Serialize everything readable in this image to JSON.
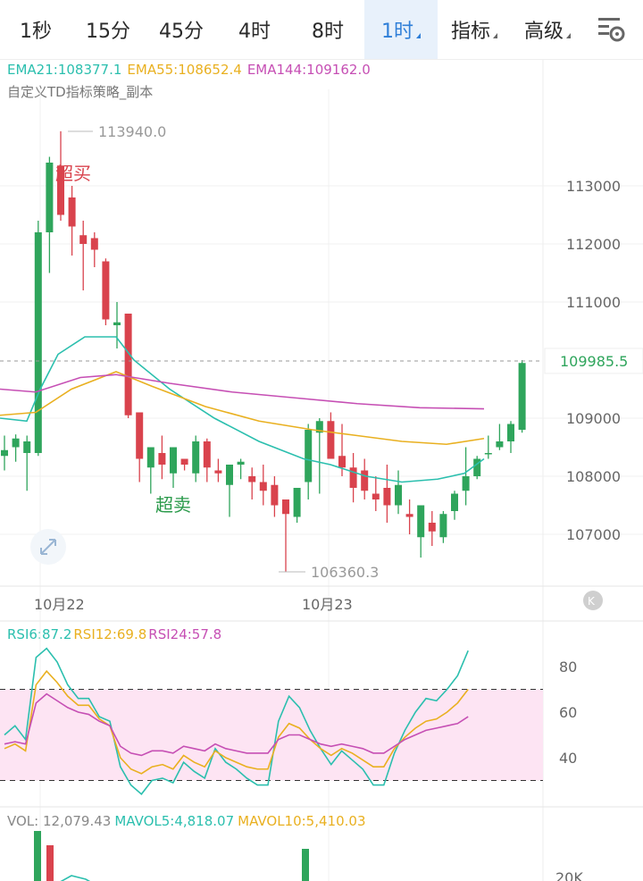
{
  "tabs": [
    {
      "label": "1秒",
      "dropdown": false,
      "active": false
    },
    {
      "label": "15分",
      "dropdown": false,
      "active": false
    },
    {
      "label": "45分",
      "dropdown": false,
      "active": false
    },
    {
      "label": "4时",
      "dropdown": false,
      "active": false
    },
    {
      "label": "8时",
      "dropdown": false,
      "active": false
    },
    {
      "label": "1时",
      "dropdown": true,
      "active": true
    },
    {
      "label": "指标",
      "dropdown": true,
      "active": false
    },
    {
      "label": "高级",
      "dropdown": true,
      "active": false
    }
  ],
  "settings_icon": "chart-settings-icon",
  "ema_legend": [
    {
      "text": "EMA21:108377.1",
      "color": "#2bbfae"
    },
    {
      "text": "EMA55:108652.4",
      "color": "#e9b020"
    },
    {
      "text": "EMA144:109162.0",
      "color": "#c64fb4"
    }
  ],
  "indicator_name": "自定义TD指标策略_副本",
  "price_axis": [
    "113000",
    "112000",
    "111000",
    "109000",
    "108000",
    "107000"
  ],
  "current_price": "109985.5",
  "high_label": "113940.0",
  "low_label": "106360.3",
  "overbought_label": "超买",
  "oversold_label": "超卖",
  "date_labels": [
    "10月22",
    "10月23"
  ],
  "rsi_legend": [
    {
      "text": "RSI6:87.2",
      "color": "#2bbfae"
    },
    {
      "text": "RSI12:69.8",
      "color": "#e9b020"
    },
    {
      "text": "RSI24:57.8",
      "color": "#c64fb4"
    }
  ],
  "rsi_axis": [
    "80",
    "60",
    "40"
  ],
  "vol_legend": [
    {
      "text": "VOL: 12,079.43",
      "color": "#888888"
    },
    {
      "text": "MAVOL5:4,818.07",
      "color": "#2bbfae"
    },
    {
      "text": "MAVOL10:5,410.03",
      "color": "#e9b020"
    }
  ],
  "vol_axis": [
    "20K"
  ],
  "colors": {
    "up": "#2fa55c",
    "down": "#d9434d",
    "active_tab": "#2f7fd8"
  }
}
